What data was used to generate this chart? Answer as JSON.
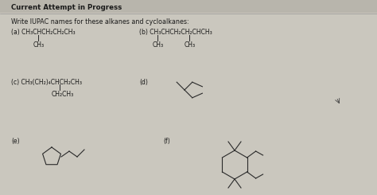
{
  "bg_color": "#cac7be",
  "header_bg": "#b8b5ac",
  "header_text": "Current Attempt in Progress",
  "instruction": "Write IUPAC names for these alkanes and cycloalkanes:",
  "label_a": "(a) CH₃CHCH₂CH₂CH₃",
  "label_a_sub": "CH₃",
  "label_b": "(b) CH₃CHCH₂CH₂CHCH₃",
  "label_b_sub1": "CH₃",
  "label_b_sub2": "CH₃",
  "label_c": "(c) CH₃(CH₂)₄CHCH₂CH₃",
  "label_c_sub": "CH₂CH₃",
  "label_d": "(d)",
  "label_e": "(e)",
  "label_f": "(f)",
  "line_color": "#2a2a2a",
  "text_color": "#1a1a1a"
}
